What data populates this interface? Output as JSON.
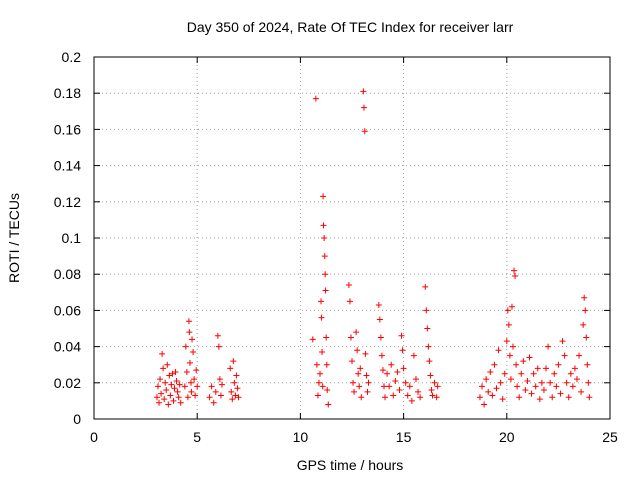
{
  "chart_data": {
    "type": "scatter",
    "title": "Day 350 of 2024, Rate Of TEC Index for receiver larr",
    "xlabel": "GPS time / hours",
    "ylabel": "ROTI / TECUs",
    "xlim": [
      0,
      25
    ],
    "ylim": [
      0,
      0.2
    ],
    "x_ticks": [
      0,
      5,
      10,
      15,
      20,
      25
    ],
    "x_tick_labels": [
      "0",
      "5",
      "10",
      "15",
      "20",
      "25"
    ],
    "y_ticks": [
      0,
      0.02,
      0.04,
      0.06,
      0.08,
      0.1,
      0.12,
      0.14,
      0.16,
      0.18,
      0.2
    ],
    "y_tick_labels": [
      "0",
      "0.02",
      "0.04",
      "0.06",
      "0.08",
      "0.1",
      "0.12",
      "0.14",
      "0.16",
      "0.18",
      "0.2"
    ],
    "grid": true,
    "marker": "+",
    "color": "#ff0000",
    "series": [
      {
        "name": "ROTI",
        "points": [
          [
            3.05,
            0.012
          ],
          [
            3.1,
            0.018
          ],
          [
            3.15,
            0.009
          ],
          [
            3.2,
            0.022
          ],
          [
            3.25,
            0.014
          ],
          [
            3.3,
            0.036
          ],
          [
            3.35,
            0.028
          ],
          [
            3.4,
            0.011
          ],
          [
            3.45,
            0.02
          ],
          [
            3.5,
            0.016
          ],
          [
            3.55,
            0.03
          ],
          [
            3.6,
            0.008
          ],
          [
            3.65,
            0.024
          ],
          [
            3.7,
            0.013
          ],
          [
            3.75,
            0.019
          ],
          [
            3.8,
            0.025
          ],
          [
            3.85,
            0.01
          ],
          [
            3.9,
            0.017
          ],
          [
            3.95,
            0.026
          ],
          [
            4.0,
            0.021
          ],
          [
            4.05,
            0.015
          ],
          [
            4.1,
            0.012
          ],
          [
            4.15,
            0.019
          ],
          [
            4.2,
            0.009
          ],
          [
            4.4,
            0.018
          ],
          [
            4.45,
            0.04
          ],
          [
            4.5,
            0.026
          ],
          [
            4.55,
            0.012
          ],
          [
            4.6,
            0.054
          ],
          [
            4.62,
            0.048
          ],
          [
            4.65,
            0.031
          ],
          [
            4.7,
            0.02
          ],
          [
            4.72,
            0.015
          ],
          [
            4.75,
            0.044
          ],
          [
            4.8,
            0.037
          ],
          [
            4.85,
            0.022
          ],
          [
            4.9,
            0.013
          ],
          [
            4.95,
            0.027
          ],
          [
            5.0,
            0.018
          ],
          [
            5.6,
            0.012
          ],
          [
            5.7,
            0.018
          ],
          [
            5.8,
            0.009
          ],
          [
            5.9,
            0.015
          ],
          [
            6.0,
            0.046
          ],
          [
            6.05,
            0.04
          ],
          [
            6.1,
            0.022
          ],
          [
            6.15,
            0.013
          ],
          [
            6.2,
            0.019
          ],
          [
            6.6,
            0.028
          ],
          [
            6.65,
            0.015
          ],
          [
            6.7,
            0.011
          ],
          [
            6.75,
            0.032
          ],
          [
            6.8,
            0.02
          ],
          [
            6.85,
            0.013
          ],
          [
            6.9,
            0.024
          ],
          [
            6.95,
            0.017
          ],
          [
            7.0,
            0.012
          ],
          [
            10.6,
            0.044
          ],
          [
            10.75,
            0.177
          ],
          [
            10.8,
            0.03
          ],
          [
            10.85,
            0.013
          ],
          [
            10.9,
            0.02
          ],
          [
            10.95,
            0.025
          ],
          [
            11.0,
            0.065
          ],
          [
            11.02,
            0.056
          ],
          [
            11.05,
            0.037
          ],
          [
            11.08,
            0.018
          ],
          [
            11.1,
            0.123
          ],
          [
            11.12,
            0.107
          ],
          [
            11.15,
            0.1
          ],
          [
            11.18,
            0.09
          ],
          [
            11.2,
            0.08
          ],
          [
            11.22,
            0.071
          ],
          [
            11.25,
            0.045
          ],
          [
            11.28,
            0.03
          ],
          [
            11.3,
            0.016
          ],
          [
            11.35,
            0.008
          ],
          [
            12.35,
            0.074
          ],
          [
            12.4,
            0.065
          ],
          [
            12.45,
            0.045
          ],
          [
            12.5,
            0.032
          ],
          [
            12.55,
            0.02
          ],
          [
            12.6,
            0.015
          ],
          [
            12.7,
            0.048
          ],
          [
            12.75,
            0.038
          ],
          [
            12.8,
            0.025
          ],
          [
            12.85,
            0.018
          ],
          [
            12.9,
            0.028
          ],
          [
            12.95,
            0.012
          ],
          [
            13.05,
            0.181
          ],
          [
            13.08,
            0.172
          ],
          [
            13.12,
            0.159
          ],
          [
            13.15,
            0.036
          ],
          [
            13.2,
            0.024
          ],
          [
            13.25,
            0.015
          ],
          [
            13.3,
            0.02
          ],
          [
            13.8,
            0.063
          ],
          [
            13.85,
            0.055
          ],
          [
            13.9,
            0.045
          ],
          [
            13.95,
            0.035
          ],
          [
            14.0,
            0.027
          ],
          [
            14.05,
            0.018
          ],
          [
            14.1,
            0.012
          ],
          [
            14.2,
            0.025
          ],
          [
            14.3,
            0.018
          ],
          [
            14.4,
            0.03
          ],
          [
            14.5,
            0.013
          ],
          [
            14.6,
            0.021
          ],
          [
            14.7,
            0.026
          ],
          [
            14.8,
            0.016
          ],
          [
            14.9,
            0.046
          ],
          [
            14.95,
            0.038
          ],
          [
            15.0,
            0.028
          ],
          [
            15.1,
            0.02
          ],
          [
            15.2,
            0.013
          ],
          [
            15.3,
            0.018
          ],
          [
            15.4,
            0.01
          ],
          [
            15.5,
            0.035
          ],
          [
            15.6,
            0.022
          ],
          [
            15.7,
            0.015
          ],
          [
            15.8,
            0.012
          ],
          [
            16.05,
            0.073
          ],
          [
            16.1,
            0.06
          ],
          [
            16.15,
            0.05
          ],
          [
            16.2,
            0.04
          ],
          [
            16.25,
            0.032
          ],
          [
            16.3,
            0.024
          ],
          [
            16.35,
            0.016
          ],
          [
            16.4,
            0.013
          ],
          [
            16.5,
            0.02
          ],
          [
            16.6,
            0.012
          ],
          [
            16.65,
            0.018
          ],
          [
            18.7,
            0.012
          ],
          [
            18.8,
            0.018
          ],
          [
            18.9,
            0.008
          ],
          [
            19.0,
            0.022
          ],
          [
            19.1,
            0.015
          ],
          [
            19.2,
            0.026
          ],
          [
            19.3,
            0.013
          ],
          [
            19.4,
            0.03
          ],
          [
            19.5,
            0.017
          ],
          [
            19.6,
            0.038
          ],
          [
            19.7,
            0.02
          ],
          [
            19.8,
            0.011
          ],
          [
            19.9,
            0.025
          ],
          [
            20.0,
            0.043
          ],
          [
            20.05,
            0.06
          ],
          [
            20.1,
            0.052
          ],
          [
            20.15,
            0.035
          ],
          [
            20.2,
            0.022
          ],
          [
            20.25,
            0.062
          ],
          [
            20.3,
            0.04
          ],
          [
            20.35,
            0.082
          ],
          [
            20.4,
            0.079
          ],
          [
            20.45,
            0.03
          ],
          [
            20.5,
            0.018
          ],
          [
            20.6,
            0.012
          ],
          [
            20.7,
            0.025
          ],
          [
            20.8,
            0.032
          ],
          [
            20.9,
            0.016
          ],
          [
            21.0,
            0.021
          ],
          [
            21.1,
            0.034
          ],
          [
            21.2,
            0.014
          ],
          [
            21.3,
            0.025
          ],
          [
            21.4,
            0.018
          ],
          [
            21.5,
            0.028
          ],
          [
            21.6,
            0.011
          ],
          [
            21.7,
            0.02
          ],
          [
            21.8,
            0.016
          ],
          [
            21.9,
            0.028
          ],
          [
            22.0,
            0.04
          ],
          [
            22.1,
            0.02
          ],
          [
            22.2,
            0.012
          ],
          [
            22.3,
            0.025
          ],
          [
            22.4,
            0.018
          ],
          [
            22.5,
            0.03
          ],
          [
            22.6,
            0.014
          ],
          [
            22.7,
            0.043
          ],
          [
            22.8,
            0.035
          ],
          [
            22.9,
            0.02
          ],
          [
            23.0,
            0.012
          ],
          [
            23.1,
            0.025
          ],
          [
            23.2,
            0.018
          ],
          [
            23.3,
            0.028
          ],
          [
            23.4,
            0.022
          ],
          [
            23.5,
            0.035
          ],
          [
            23.6,
            0.015
          ],
          [
            23.7,
            0.052
          ],
          [
            23.75,
            0.067
          ],
          [
            23.8,
            0.06
          ],
          [
            23.85,
            0.045
          ],
          [
            23.9,
            0.03
          ],
          [
            23.95,
            0.02
          ],
          [
            24.0,
            0.012
          ]
        ]
      }
    ]
  }
}
